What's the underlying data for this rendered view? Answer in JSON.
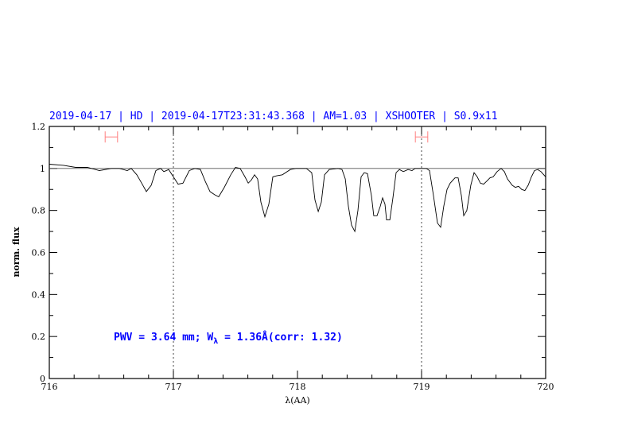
{
  "chart_data": {
    "type": "line",
    "title": "2019-04-17 | HD | 2019-04-17T23:31:43.368 | AM=1.03 | XSHOOTER | S0.9x11",
    "xlabel": "λ(AA)",
    "ylabel": "norm. flux",
    "xlim": [
      716,
      720
    ],
    "ylim": [
      0,
      1.2
    ],
    "xticks": [
      "716",
      "717",
      "718",
      "719",
      "720"
    ],
    "yticks": [
      "0",
      "0.2",
      "0.4",
      "0.6",
      "0.8",
      "1",
      "1.2"
    ],
    "reference_line": 1.0,
    "reference_line_color": "#e87070",
    "vertical_dotted_lines": [
      717,
      719
    ],
    "windows": [
      {
        "x": [
          716.45,
          716.55
        ],
        "y": 1.15
      },
      {
        "x": [
          718.95,
          719.05
        ],
        "y": 1.15
      }
    ],
    "window_color": "#ff8080",
    "annotation": {
      "prefix": "PWV = 3.64 mm; W",
      "subscript": "λ",
      "suffix": " = 1.36Å(corr: 1.32)"
    },
    "title_color": "#0000ff",
    "series": [
      {
        "color": "#000000",
        "x": [
          716.0,
          716.115,
          716.212,
          716.308,
          716.404,
          716.5,
          716.564,
          716.628,
          716.66,
          716.705,
          716.744,
          716.782,
          716.821,
          716.859,
          716.897,
          716.923,
          716.962,
          717.0,
          717.038,
          717.077,
          717.128,
          717.173,
          717.218,
          717.256,
          717.295,
          717.333,
          717.365,
          717.41,
          717.462,
          717.5,
          717.538,
          717.577,
          717.603,
          717.628,
          717.654,
          717.679,
          717.705,
          717.737,
          717.769,
          717.801,
          717.833,
          717.878,
          717.942,
          717.987,
          718.071,
          718.115,
          718.141,
          718.167,
          718.192,
          718.218,
          718.256,
          718.327,
          718.359,
          718.385,
          718.41,
          718.436,
          718.462,
          718.487,
          718.513,
          718.538,
          718.564,
          718.596,
          718.615,
          718.641,
          718.667,
          718.686,
          718.705,
          718.718,
          718.744,
          718.769,
          718.795,
          718.821,
          718.853,
          718.891,
          718.923,
          718.949,
          719.0,
          719.038,
          719.064,
          719.096,
          719.128,
          719.154,
          719.179,
          719.205,
          719.231,
          719.269,
          719.295,
          719.321,
          719.34,
          719.365,
          719.397,
          719.423,
          719.449,
          719.474,
          719.5,
          719.526,
          719.551,
          719.577,
          719.609,
          719.641,
          719.667,
          719.692,
          719.731,
          719.756,
          719.782,
          719.808,
          719.833,
          719.859,
          719.885,
          719.91,
          719.936,
          719.962,
          720.0
        ],
        "y": [
          1.02,
          1.015,
          1.005,
          1.005,
          0.99,
          1.0,
          1.0,
          0.99,
          1.0,
          0.97,
          0.93,
          0.89,
          0.92,
          0.99,
          1.0,
          0.985,
          0.995,
          0.96,
          0.925,
          0.93,
          0.99,
          1.0,
          0.995,
          0.94,
          0.89,
          0.875,
          0.865,
          0.91,
          0.97,
          1.005,
          1.0,
          0.96,
          0.93,
          0.945,
          0.97,
          0.95,
          0.84,
          0.77,
          0.83,
          0.96,
          0.965,
          0.97,
          0.995,
          1.0,
          1.0,
          0.98,
          0.85,
          0.795,
          0.84,
          0.97,
          0.995,
          1.0,
          0.995,
          0.95,
          0.82,
          0.73,
          0.7,
          0.8,
          0.96,
          0.98,
          0.975,
          0.87,
          0.775,
          0.775,
          0.82,
          0.86,
          0.83,
          0.755,
          0.755,
          0.86,
          0.98,
          0.995,
          0.985,
          0.995,
          0.99,
          1.0,
          1.0,
          1.0,
          0.99,
          0.87,
          0.74,
          0.72,
          0.82,
          0.9,
          0.93,
          0.955,
          0.955,
          0.87,
          0.775,
          0.8,
          0.92,
          0.98,
          0.96,
          0.93,
          0.925,
          0.94,
          0.955,
          0.96,
          0.985,
          1.0,
          0.985,
          0.95,
          0.92,
          0.91,
          0.915,
          0.9,
          0.895,
          0.92,
          0.96,
          0.99,
          0.995,
          0.985,
          0.96
        ]
      }
    ]
  }
}
